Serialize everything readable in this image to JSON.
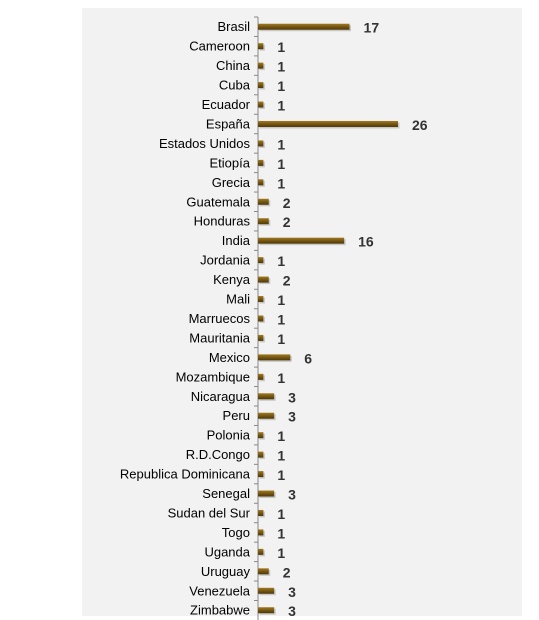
{
  "chart_data": {
    "type": "bar",
    "orientation": "horizontal",
    "title": "",
    "xlabel": "",
    "ylabel": "",
    "grid": false,
    "legend": "none",
    "bar_color": "#7a5a14",
    "xlim": [
      0,
      26
    ],
    "categories": [
      "Brasil",
      "Cameroon",
      "China",
      "Cuba",
      "Ecuador",
      "España",
      "Estados Unidos",
      "Etiopía",
      "Grecia",
      "Guatemala",
      "Honduras",
      "India",
      "Jordania",
      "Kenya",
      "Mali",
      "Marruecos",
      "Mauritania",
      "Mexico",
      "Mozambique",
      "Nicaragua",
      "Peru",
      "Polonia",
      "R.D.Congo",
      "Republica Dominicana",
      "Senegal",
      "Sudan del Sur",
      "Togo",
      "Uganda",
      "Uruguay",
      "Venezuela",
      "Zimbabwe"
    ],
    "values": [
      17,
      1,
      1,
      1,
      1,
      26,
      1,
      1,
      1,
      2,
      2,
      16,
      1,
      2,
      1,
      1,
      1,
      6,
      1,
      3,
      3,
      1,
      1,
      1,
      3,
      1,
      1,
      1,
      2,
      3,
      3
    ]
  }
}
